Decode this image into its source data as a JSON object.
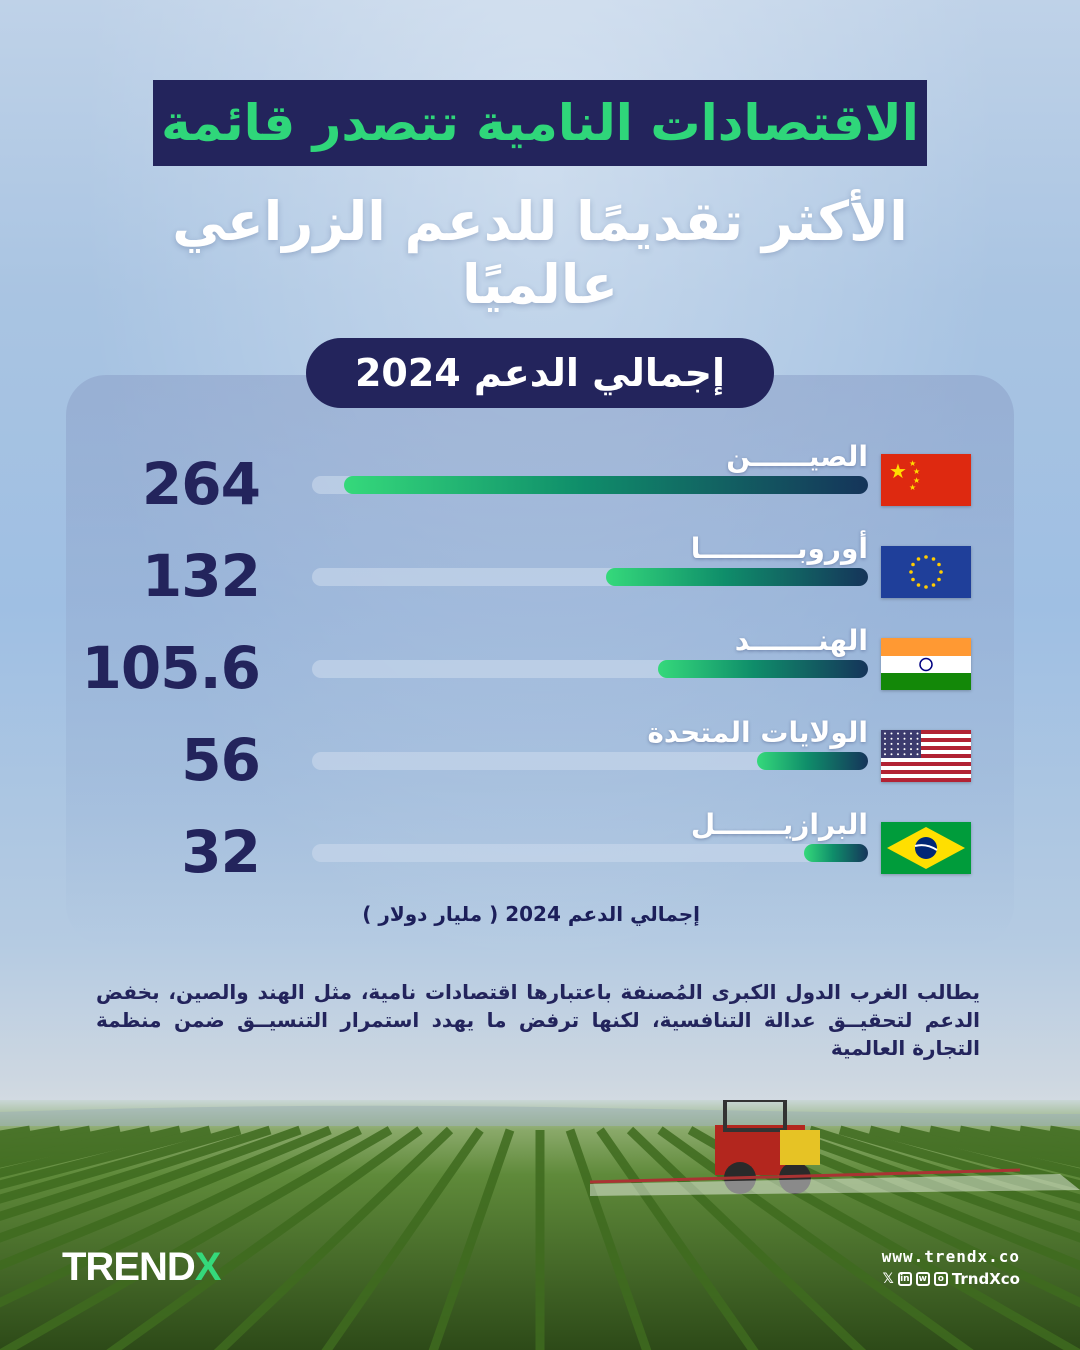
{
  "header": {
    "title": "الاقتصادات النامية تتصدر قائمة",
    "subtitle": "الأكثر تقديمًا للدعم الزراعي عالميًا",
    "pill": "إجمالي الدعم 2024"
  },
  "chart_data": {
    "type": "bar",
    "orientation": "horizontal",
    "categories": [
      "الصيــــــن",
      "أوروبــــــــــا",
      "الهنـــــــد",
      "الولايات المتحدة",
      "البرازيـــــــل"
    ],
    "values": [
      264,
      132,
      105.6,
      56,
      32
    ],
    "value_labels": [
      "264",
      "132",
      "105.6",
      "56",
      "32"
    ],
    "flags": [
      "china-flag",
      "eu-flag",
      "india-flag",
      "usa-flag",
      "brazil-flag"
    ],
    "xlim": [
      0,
      280
    ],
    "unit_label": "إجمالي الدعم 2024 ( مليار دولار )"
  },
  "body_text": "يطالب الغرب الدول الكبرى المُصنفة باعتبارها اقتصادات نامية، مثل الهند والصين، بخفض الدعم لتحقيــق عدالة التنافسية، لكنها ترفض ما يهدد استمرار التنسيــق ضمن منظمة التجارة العالمية",
  "footer": {
    "logo_prefix": "TREND",
    "logo_suffix": "X",
    "url": "www.trendx.co",
    "handle": "TrndXco"
  },
  "colors": {
    "navy": "#23245c",
    "accent_green": "#2fd67a"
  }
}
